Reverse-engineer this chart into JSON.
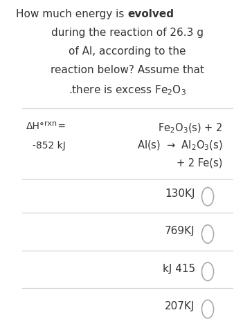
{
  "background_color": "#ffffff",
  "question_text_parts": [
    {
      "text": "How much energy is ",
      "bold": false
    },
    {
      "text": "evolved",
      "bold": true
    },
    {
      "text": "\nduring the reaction of 26.3 g\nof Al, according to the\nreaction below? Assume that\n.there is excess Fe₂O₃",
      "bold": false
    }
  ],
  "delta_h_label": "ΔH°",
  "rxn_label": "rxn",
  "equals_label": "=",
  "delta_h_value": "-852 kJ",
  "reaction_line1": "Fe₂O₃(s) + 2",
  "reaction_line2": "Al(s)  →  Al₂O₃(s)",
  "reaction_line3": "+ 2 Fe(s)",
  "choices": [
    "130KJ",
    "769KJ",
    "kJ 415",
    "207KJ"
  ],
  "separator_color": "#cccccc",
  "text_color": "#333333",
  "circle_color": "#aaaaaa",
  "font_size_question": 11,
  "font_size_reaction": 10.5,
  "font_size_choices": 11
}
